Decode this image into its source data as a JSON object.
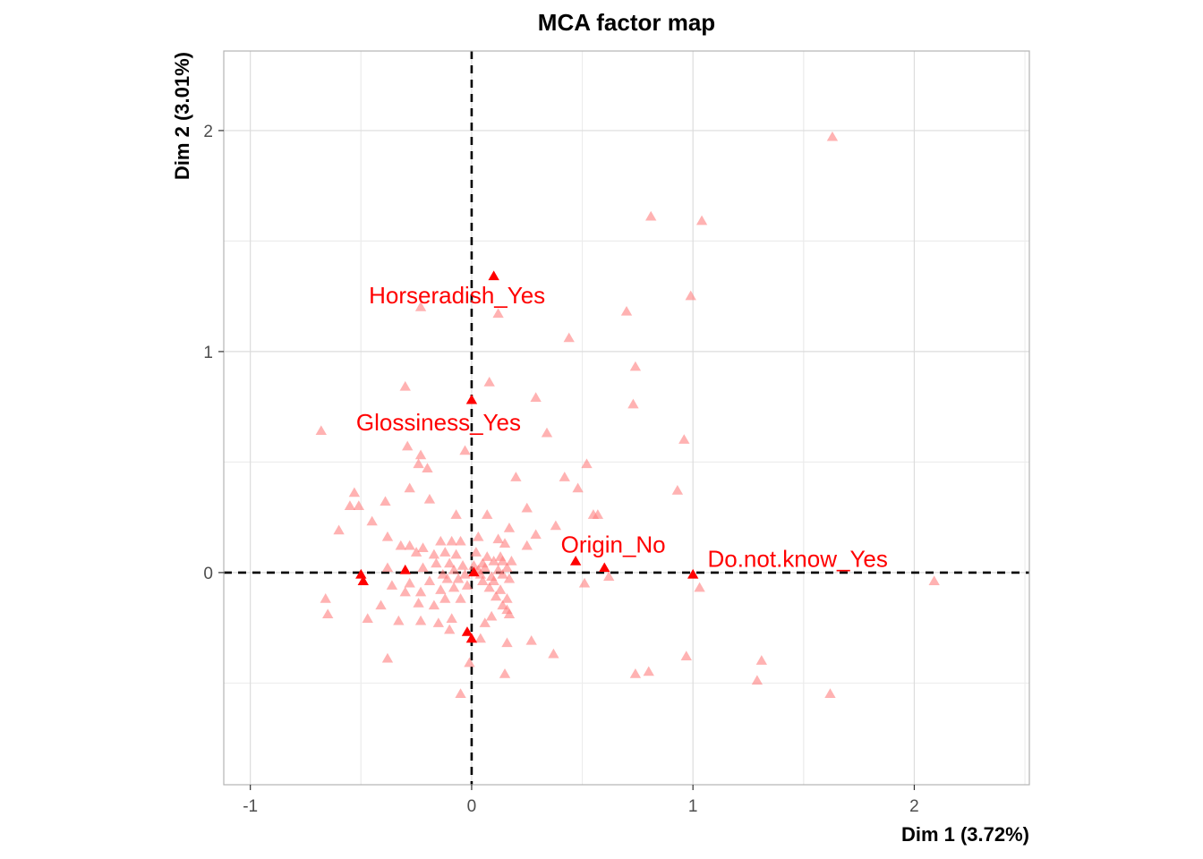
{
  "colors": {
    "individual": "#ff7f7f",
    "category": "#ff0000",
    "grid_major": "#dcdcdc",
    "grid_minor": "#ececec",
    "panel_border": "#b3b3b3",
    "reference_line": "#000000"
  },
  "chart_data": {
    "type": "scatter",
    "title": "MCA factor map",
    "xlabel": "Dim 1 (3.72%)",
    "ylabel": "Dim 2 (3.01%)",
    "xlim": [
      -1.12,
      2.52
    ],
    "ylim": [
      -0.96,
      2.36
    ],
    "xticks": [
      -1,
      0,
      1,
      2
    ],
    "yticks": [
      0,
      1,
      2
    ],
    "xtick_labels": [
      "-1",
      "0",
      "1",
      "2"
    ],
    "ytick_labels": [
      "0",
      "1",
      "2"
    ],
    "grid": true,
    "reference_lines": {
      "x": 0,
      "y": 0,
      "style": "dashed"
    },
    "individuals": [
      [
        1.63,
        1.97
      ],
      [
        0.81,
        1.61
      ],
      [
        1.04,
        1.59
      ],
      [
        0.99,
        1.25
      ],
      [
        0.7,
        1.18
      ],
      [
        -0.23,
        1.2
      ],
      [
        0.12,
        1.17
      ],
      [
        0.44,
        1.06
      ],
      [
        0.74,
        0.93
      ],
      [
        0.73,
        0.76
      ],
      [
        -0.3,
        0.84
      ],
      [
        0.08,
        0.86
      ],
      [
        0.29,
        0.79
      ],
      [
        -0.68,
        0.64
      ],
      [
        0.34,
        0.63
      ],
      [
        0.96,
        0.6
      ],
      [
        -0.29,
        0.57
      ],
      [
        -0.23,
        0.53
      ],
      [
        -0.24,
        0.49
      ],
      [
        -0.2,
        0.47
      ],
      [
        -0.03,
        0.55
      ],
      [
        0.52,
        0.49
      ],
      [
        0.42,
        0.43
      ],
      [
        0.2,
        0.43
      ],
      [
        0.48,
        0.38
      ],
      [
        0.93,
        0.37
      ],
      [
        -0.28,
        0.38
      ],
      [
        -0.39,
        0.32
      ],
      [
        -0.53,
        0.36
      ],
      [
        -0.51,
        0.3
      ],
      [
        -0.55,
        0.3
      ],
      [
        -0.19,
        0.33
      ],
      [
        -0.45,
        0.23
      ],
      [
        -0.6,
        0.19
      ],
      [
        -0.07,
        0.26
      ],
      [
        0.07,
        0.26
      ],
      [
        0.25,
        0.29
      ],
      [
        0.55,
        0.26
      ],
      [
        0.57,
        0.26
      ],
      [
        0.38,
        0.21
      ],
      [
        0.17,
        0.2
      ],
      [
        -0.38,
        0.16
      ],
      [
        0.29,
        0.17
      ],
      [
        -0.32,
        0.12
      ],
      [
        -0.28,
        0.12
      ],
      [
        -0.22,
        0.11
      ],
      [
        -0.14,
        0.14
      ],
      [
        -0.09,
        0.14
      ],
      [
        -0.05,
        0.14
      ],
      [
        0.03,
        0.16
      ],
      [
        0.12,
        0.15
      ],
      [
        0.15,
        0.13
      ],
      [
        0.25,
        0.12
      ],
      [
        -0.25,
        0.09
      ],
      [
        -0.17,
        0.08
      ],
      [
        -0.12,
        0.09
      ],
      [
        -0.07,
        0.08
      ],
      [
        0.02,
        0.09
      ],
      [
        0.07,
        0.07
      ],
      [
        0.13,
        0.07
      ],
      [
        -0.16,
        0.04
      ],
      [
        -0.1,
        0.04
      ],
      [
        -0.04,
        0.03
      ],
      [
        0.01,
        0.03
      ],
      [
        0.05,
        0.04
      ],
      [
        0.1,
        0.05
      ],
      [
        0.14,
        0.05
      ],
      [
        0.18,
        0.05
      ],
      [
        -0.38,
        0.02
      ],
      [
        -0.22,
        0.02
      ],
      [
        -0.08,
        0.01
      ],
      [
        0.03,
        0.01
      ],
      [
        0.06,
        0.02
      ],
      [
        0.12,
        0.01
      ],
      [
        0.16,
        0.02
      ],
      [
        -0.13,
        -0.01
      ],
      [
        -0.03,
        -0.01
      ],
      [
        0.04,
        -0.01
      ],
      [
        0.09,
        -0.02
      ],
      [
        0.14,
        -0.01
      ],
      [
        -0.36,
        -0.06
      ],
      [
        -0.28,
        -0.05
      ],
      [
        -0.19,
        -0.04
      ],
      [
        -0.11,
        -0.03
      ],
      [
        -0.06,
        -0.03
      ],
      [
        0.05,
        -0.04
      ],
      [
        0.1,
        -0.04
      ],
      [
        0.17,
        -0.03
      ],
      [
        -0.3,
        -0.09
      ],
      [
        -0.23,
        -0.09
      ],
      [
        -0.14,
        -0.08
      ],
      [
        -0.08,
        -0.07
      ],
      [
        -0.02,
        -0.06
      ],
      [
        0.08,
        -0.07
      ],
      [
        0.13,
        -0.08
      ],
      [
        0.51,
        -0.05
      ],
      [
        0.62,
        -0.02
      ],
      [
        1.03,
        -0.07
      ],
      [
        2.09,
        -0.04
      ],
      [
        -0.66,
        -0.12
      ],
      [
        -0.12,
        -0.12
      ],
      [
        -0.05,
        -0.12
      ],
      [
        0.11,
        -0.11
      ],
      [
        0.16,
        -0.12
      ],
      [
        -0.41,
        -0.15
      ],
      [
        -0.24,
        -0.14
      ],
      [
        -0.17,
        -0.15
      ],
      [
        0.14,
        -0.15
      ],
      [
        0.16,
        -0.17
      ],
      [
        -0.65,
        -0.19
      ],
      [
        -0.47,
        -0.21
      ],
      [
        -0.33,
        -0.22
      ],
      [
        -0.23,
        -0.22
      ],
      [
        -0.15,
        -0.23
      ],
      [
        -0.09,
        -0.21
      ],
      [
        0.09,
        -0.2
      ],
      [
        0.06,
        -0.23
      ],
      [
        0.17,
        -0.19
      ],
      [
        -0.1,
        -0.26
      ],
      [
        0.04,
        -0.3
      ],
      [
        0.16,
        -0.32
      ],
      [
        0.27,
        -0.31
      ],
      [
        0.37,
        -0.37
      ],
      [
        -0.38,
        -0.39
      ],
      [
        -0.01,
        -0.41
      ],
      [
        0.15,
        -0.46
      ],
      [
        0.74,
        -0.46
      ],
      [
        0.8,
        -0.45
      ],
      [
        0.97,
        -0.38
      ],
      [
        1.31,
        -0.4
      ],
      [
        1.29,
        -0.49
      ],
      [
        1.62,
        -0.55
      ],
      [
        -0.05,
        -0.55
      ]
    ],
    "categories": [
      {
        "label": "Horseradish_Yes",
        "x": 0.1,
        "y": 1.34
      },
      {
        "label": "Glossiness_Yes",
        "x": 0.0,
        "y": 0.78
      },
      {
        "label": "Origin_No",
        "x": 0.47,
        "y": 0.05
      },
      {
        "label": "Do.not.know_Yes",
        "x": 1.0,
        "y": -0.01
      },
      {
        "label": "",
        "x": 0.6,
        "y": 0.02
      },
      {
        "label": "",
        "x": -0.3,
        "y": 0.01
      },
      {
        "label": "",
        "x": -0.5,
        "y": -0.01
      },
      {
        "label": "",
        "x": -0.49,
        "y": -0.04
      },
      {
        "label": "",
        "x": 0.01,
        "y": 0.0
      },
      {
        "label": "",
        "x": -0.02,
        "y": -0.27
      },
      {
        "label": "",
        "x": 0.0,
        "y": -0.3
      }
    ]
  }
}
